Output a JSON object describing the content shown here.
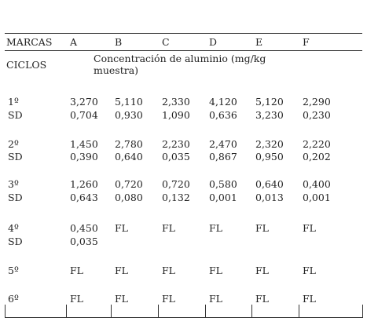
{
  "header": {
    "label": "MARCAS",
    "columns": [
      "A",
      "B",
      "C",
      "D",
      "E",
      "F"
    ]
  },
  "subheader": {
    "label": "CICLOS",
    "unit": "Concentración de aluminio  (mg/kg muestra)"
  },
  "rows": [
    {
      "label": "1º",
      "values": [
        "3,270",
        "5,110",
        "2,330",
        "4,120",
        "5,120",
        "2,290"
      ]
    },
    {
      "label": "SD",
      "values": [
        "0,704",
        "0,930",
        "1,090",
        "0,636",
        "3,230",
        "0,230"
      ]
    },
    {
      "label": "2º",
      "values": [
        "1,450",
        "2,780",
        "2,230",
        "2,470",
        "2,320",
        "2,220"
      ]
    },
    {
      "label": "SD",
      "values": [
        "0,390",
        "0,640",
        "0,035",
        "0,867",
        "0,950",
        "0,202"
      ]
    },
    {
      "label": "3º",
      "values": [
        "1,260",
        "0,720",
        "0,720",
        "0,580",
        "0,640",
        "0,400"
      ]
    },
    {
      "label": "SD",
      "values": [
        "0,643",
        "0,080",
        "0,132",
        "0,001",
        "0,013",
        "0,001"
      ]
    },
    {
      "label": "4º",
      "values": [
        "0,450",
        "FL",
        "FL",
        "FL",
        "FL",
        "FL"
      ]
    },
    {
      "label": "SD",
      "values": [
        "0,035",
        "",
        "",
        "",
        "",
        ""
      ]
    },
    {
      "label": "5º",
      "values": [
        "FL",
        "FL",
        "FL",
        "FL",
        "FL",
        "FL"
      ]
    },
    {
      "label": "6º",
      "values": [
        "FL",
        "FL",
        "FL",
        "FL",
        "FL",
        "FL"
      ]
    }
  ]
}
